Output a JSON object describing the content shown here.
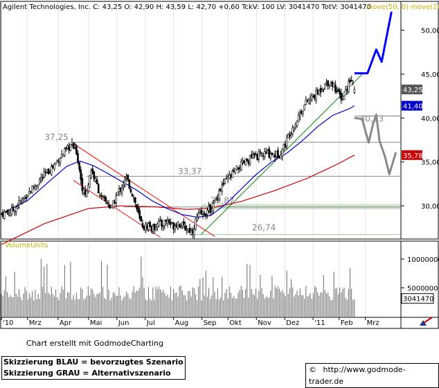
{
  "header": {
    "text": "Agilent Technologies, Inc.  C: 43,25  O: 42,90  H: 43,59  L: 42,70  +0,60  TckV: 100  LV: 3041470  TotV: 3041470",
    "ma_label": "move(50, 0)  move(200"
  },
  "footer": {
    "created_by": "Chart erstellt mit GodmodeCharting",
    "legend_blue": "Skizzierung BLAU = bevorzugtes Szenario",
    "legend_grey": "Skizzierung GRAU = Alternativszenario",
    "copyright_symbol": "©",
    "url": "http://www.godmode-trader.de"
  },
  "chart_data": {
    "type": "candlestick",
    "instrument": "Agilent Technologies, Inc.",
    "last": {
      "close": 43.25,
      "open": 42.9,
      "high": 43.59,
      "low": 42.7,
      "change": 0.6,
      "volume": 3041470
    },
    "price_axis": {
      "ticks": [
        30,
        35,
        40,
        45,
        50
      ],
      "tick_labels": [
        "30,00",
        "35,00",
        "40,00",
        "45,00",
        "50,00"
      ],
      "range": [
        26.3,
        53.2
      ]
    },
    "volume_axis": {
      "ticks": [
        5000000,
        10000000
      ],
      "tick_labels": [
        "5000000",
        "10000000"
      ],
      "range": [
        0,
        13000000
      ]
    },
    "x_labels": [
      "'10",
      "Mrz",
      "Apr",
      "Mai",
      "Jun",
      "Jul",
      "Aug",
      "Sep",
      "Okt",
      "Nov",
      "Dez",
      "'11",
      "Feb",
      "Mrz"
    ],
    "x_label_positions": [
      0,
      1.2,
      2.6,
      4.0,
      5.3,
      6.6,
      7.9,
      9.2,
      10.4,
      11.7,
      13.0,
      14.3,
      15.5,
      16.7
    ],
    "horizontal_levels": [
      {
        "value": 37.25,
        "label": "37,25"
      },
      {
        "value": 33.37,
        "label": "33,37"
      },
      {
        "value": 29.87,
        "label": "29,87"
      },
      {
        "value": 26.74,
        "label": "26,74"
      },
      {
        "value": 40.23,
        "label": "40,23"
      }
    ],
    "price_anchors": [
      [
        0,
        29.1
      ],
      [
        0.5,
        29.4
      ],
      [
        1.2,
        31.4
      ],
      [
        1.9,
        33.3
      ],
      [
        2.3,
        34.3
      ],
      [
        2.7,
        35.6
      ],
      [
        3.0,
        36.3
      ],
      [
        3.2,
        37.0
      ],
      [
        3.45,
        36.2
      ],
      [
        3.6,
        33.8
      ],
      [
        3.75,
        31.6
      ],
      [
        3.9,
        31.3
      ],
      [
        4.1,
        34.3
      ],
      [
        4.35,
        32.6
      ],
      [
        4.6,
        30.8
      ],
      [
        4.85,
        30.4
      ],
      [
        5.05,
        29.6
      ],
      [
        5.3,
        31.3
      ],
      [
        5.55,
        32.3
      ],
      [
        5.75,
        33.1
      ],
      [
        5.95,
        31.8
      ],
      [
        6.15,
        30.3
      ],
      [
        6.35,
        28.3
      ],
      [
        6.55,
        27.5
      ],
      [
        6.75,
        27.9
      ],
      [
        6.95,
        27.3
      ],
      [
        7.15,
        28.2
      ],
      [
        7.35,
        27.8
      ],
      [
        7.6,
        28.4
      ],
      [
        7.85,
        27.7
      ],
      [
        8.1,
        28.1
      ],
      [
        8.35,
        27.6
      ],
      [
        8.55,
        27.4
      ],
      [
        8.75,
        27.0
      ],
      [
        8.95,
        28.6
      ],
      [
        9.15,
        29.0
      ],
      [
        9.45,
        29.3
      ],
      [
        9.75,
        30.1
      ],
      [
        10.0,
        31.8
      ],
      [
        10.3,
        32.8
      ],
      [
        10.6,
        33.6
      ],
      [
        10.9,
        34.4
      ],
      [
        11.2,
        35.0
      ],
      [
        11.5,
        35.5
      ],
      [
        11.8,
        35.7
      ],
      [
        12.1,
        35.9
      ],
      [
        12.35,
        36.0
      ],
      [
        12.55,
        35.8
      ],
      [
        12.75,
        35.9
      ],
      [
        13.0,
        36.9
      ],
      [
        13.25,
        38.5
      ],
      [
        13.5,
        39.5
      ],
      [
        13.75,
        40.8
      ],
      [
        14.0,
        41.8
      ],
      [
        14.25,
        42.3
      ],
      [
        14.5,
        42.8
      ],
      [
        14.75,
        43.6
      ],
      [
        15.0,
        44.1
      ],
      [
        15.25,
        43.8
      ],
      [
        15.45,
        42.7
      ],
      [
        15.65,
        42.3
      ],
      [
        15.85,
        43.4
      ],
      [
        16.05,
        44.8
      ],
      [
        16.2,
        43.25
      ]
    ],
    "ma50_anchors": [
      [
        0,
        29.1
      ],
      [
        1.2,
        30.6
      ],
      [
        2.2,
        32.8
      ],
      [
        3.0,
        34.5
      ],
      [
        3.6,
        35.1
      ],
      [
        4.2,
        34.6
      ],
      [
        4.8,
        33.8
      ],
      [
        5.5,
        32.8
      ],
      [
        6.2,
        31.8
      ],
      [
        6.9,
        30.6
      ],
      [
        7.6,
        29.7
      ],
      [
        8.3,
        29.0
      ],
      [
        9.0,
        28.7
      ],
      [
        9.6,
        28.9
      ],
      [
        10.3,
        30.2
      ],
      [
        11.0,
        31.9
      ],
      [
        11.7,
        33.6
      ],
      [
        12.4,
        35.0
      ],
      [
        13.1,
        36.0
      ],
      [
        13.8,
        37.4
      ],
      [
        14.5,
        39.0
      ],
      [
        15.2,
        40.3
      ],
      [
        16.0,
        41.1
      ],
      [
        16.2,
        41.4
      ]
    ],
    "ma200_anchors": [
      [
        0,
        25.6
      ],
      [
        2.0,
        28.0
      ],
      [
        4.0,
        29.7
      ],
      [
        5.5,
        30.0
      ],
      [
        7.0,
        29.9
      ],
      [
        8.5,
        29.6
      ],
      [
        9.5,
        29.7
      ],
      [
        11.0,
        30.5
      ],
      [
        12.5,
        31.7
      ],
      [
        14.0,
        33.1
      ],
      [
        15.3,
        34.6
      ],
      [
        16.2,
        35.78
      ]
    ],
    "trendlines": [
      {
        "name": "channel-upper",
        "color": "#ff0000",
        "points": [
          [
            3.2,
            37.25
          ],
          [
            9.8,
            26.5
          ]
        ]
      },
      {
        "name": "channel-lower",
        "color": "#ff0000",
        "points": [
          [
            3.3,
            32.9
          ],
          [
            7.3,
            26.4
          ]
        ]
      },
      {
        "name": "uptrend",
        "color": "#008000",
        "points": [
          [
            9.15,
            26.7
          ],
          [
            16.6,
            45.1
          ]
        ]
      }
    ],
    "support_zone": {
      "from": 29.6,
      "to": 30.2,
      "color": "#cfe3cf"
    },
    "scenario_blue": {
      "color": "#0000ff",
      "points": [
        [
          16.2,
          45.1
        ],
        [
          16.8,
          45.1
        ],
        [
          17.2,
          47.8
        ],
        [
          17.45,
          46.4
        ],
        [
          17.9,
          52.1
        ]
      ]
    },
    "scenario_grey": {
      "color": "#888888",
      "points": [
        [
          16.2,
          40.0
        ],
        [
          16.55,
          39.9
        ],
        [
          16.85,
          37.2
        ],
        [
          17.05,
          39.3
        ],
        [
          17.2,
          40.4
        ],
        [
          17.35,
          37.4
        ],
        [
          17.6,
          35.6
        ],
        [
          17.8,
          33.6
        ],
        [
          18.1,
          36.1
        ]
      ]
    },
    "price_tags": [
      {
        "label": "43,25",
        "value": 43.25,
        "bg": "#555555",
        "fg": "#ffffff"
      },
      {
        "label": "41,40",
        "value": 41.4,
        "bg": "#0000cc",
        "fg": "#ffffff"
      },
      {
        "label": "35,78",
        "value": 35.78,
        "bg": "#cc0000",
        "fg": "#ffffff"
      }
    ],
    "volume_label": "VolumeUnits",
    "volume_last_label": "3041470"
  }
}
